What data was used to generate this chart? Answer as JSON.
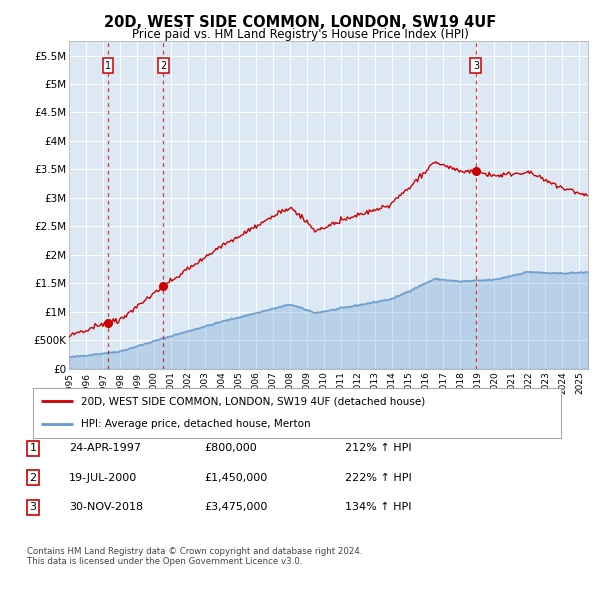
{
  "title": "20D, WEST SIDE COMMON, LONDON, SW19 4UF",
  "subtitle": "Price paid vs. HM Land Registry's House Price Index (HPI)",
  "transactions": [
    {
      "year": 1997.292,
      "price": 800000,
      "label": "1"
    },
    {
      "year": 2000.542,
      "price": 1450000,
      "label": "2"
    },
    {
      "year": 2018.917,
      "price": 3475000,
      "label": "3"
    }
  ],
  "transaction_labels_table": [
    {
      "num": "1",
      "date": "24-APR-1997",
      "price": "£800,000",
      "pct": "212% ↑ HPI"
    },
    {
      "num": "2",
      "date": "19-JUL-2000",
      "price": "£1,450,000",
      "pct": "222% ↑ HPI"
    },
    {
      "num": "3",
      "date": "30-NOV-2018",
      "price": "£3,475,000",
      "pct": "134% ↑ HPI"
    }
  ],
  "legend_line1": "20D, WEST SIDE COMMON, LONDON, SW19 4UF (detached house)",
  "legend_line2": "HPI: Average price, detached house, Merton",
  "footnote1": "Contains HM Land Registry data © Crown copyright and database right 2024.",
  "footnote2": "This data is licensed under the Open Government Licence v3.0.",
  "line_color": "#cc0000",
  "hpi_color": "#6699cc",
  "background_color": "#dce9f5",
  "ylim": [
    0,
    5750000
  ],
  "yticks": [
    0,
    500000,
    1000000,
    1500000,
    2000000,
    2500000,
    3000000,
    3500000,
    4000000,
    4500000,
    5000000,
    5500000
  ],
  "xlim_start": 1995.0,
  "xlim_end": 2025.5,
  "xtick_years": [
    1995,
    1996,
    1997,
    1998,
    1999,
    2000,
    2001,
    2002,
    2003,
    2004,
    2005,
    2006,
    2007,
    2008,
    2009,
    2010,
    2011,
    2012,
    2013,
    2014,
    2015,
    2016,
    2017,
    2018,
    2019,
    2020,
    2021,
    2022,
    2023,
    2024,
    2025
  ]
}
